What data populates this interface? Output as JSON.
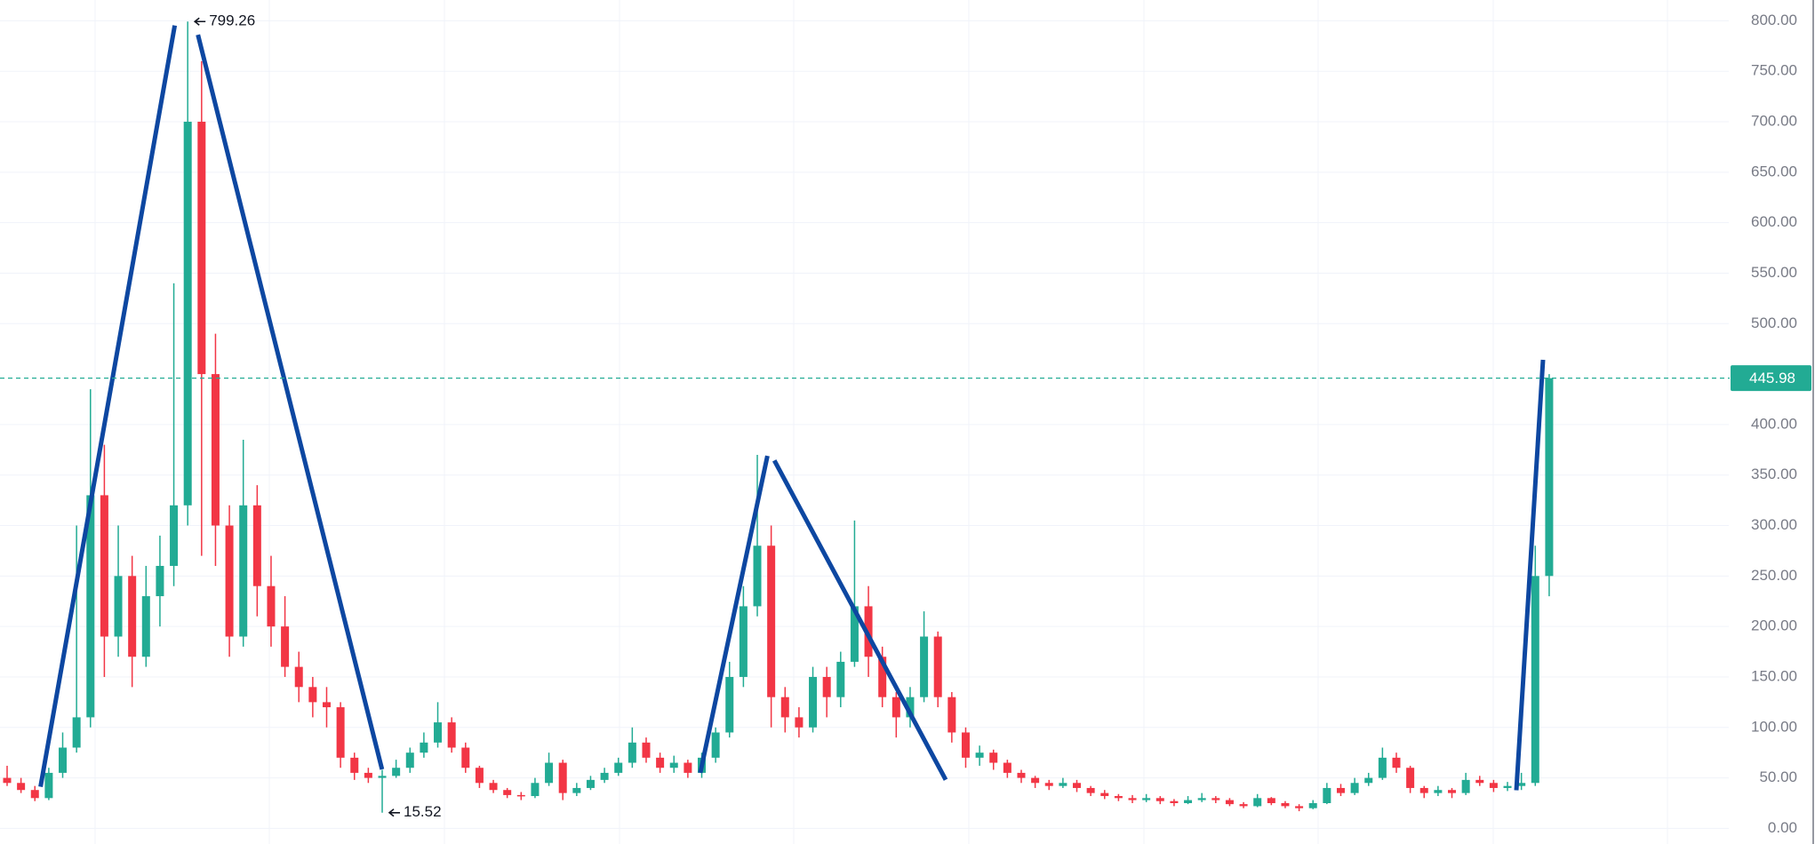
{
  "chart_data": {
    "type": "candlestick",
    "up_color": "#22ab94",
    "down_color": "#f23645",
    "grid": true,
    "ylim": [
      0,
      800
    ],
    "yticks": [
      {
        "value": 0,
        "label": "0.00"
      },
      {
        "value": 50,
        "label": "50.00"
      },
      {
        "value": 100,
        "label": "100.00"
      },
      {
        "value": 150,
        "label": "150.00"
      },
      {
        "value": 200,
        "label": "200.00"
      },
      {
        "value": 250,
        "label": "250.00"
      },
      {
        "value": 300,
        "label": "300.00"
      },
      {
        "value": 350,
        "label": "350.00"
      },
      {
        "value": 400,
        "label": "400.00"
      },
      {
        "value": 500,
        "label": "500.00"
      },
      {
        "value": 550,
        "label": "550.00"
      },
      {
        "value": 600,
        "label": "600.00"
      },
      {
        "value": 650,
        "label": "650.00"
      },
      {
        "value": 700,
        "label": "700.00"
      },
      {
        "value": 750,
        "label": "750.00"
      },
      {
        "value": 800,
        "label": "800.00"
      }
    ],
    "high_marker": 799.26,
    "low_marker": 15.52,
    "last_price": 445.98,
    "last_price_color": "#22ab94",
    "open": [
      50,
      45,
      38,
      30,
      55,
      80,
      110,
      330,
      190,
      250,
      170,
      230,
      260,
      320,
      700,
      450,
      300,
      190,
      320,
      240,
      200,
      160,
      140,
      125,
      120,
      70,
      55,
      50,
      52,
      60,
      75,
      85,
      105,
      80,
      60,
      45,
      38,
      33,
      32,
      45,
      65,
      35,
      40,
      48,
      55,
      65,
      85,
      70,
      60,
      65,
      55,
      70,
      95,
      150,
      220,
      280,
      130,
      110,
      100,
      150,
      130,
      165,
      220,
      170,
      130,
      110,
      130,
      190,
      130,
      95,
      70,
      75,
      65,
      55,
      50,
      45,
      42,
      45,
      40,
      35,
      32,
      30,
      28,
      30,
      27,
      25,
      28,
      30,
      28,
      24,
      22,
      30,
      25,
      22,
      20,
      25,
      40,
      35,
      45,
      50,
      70,
      60,
      40,
      35,
      38,
      35,
      48,
      45,
      40,
      42,
      45,
      250
    ],
    "high": [
      62,
      50,
      42,
      60,
      95,
      300,
      435,
      380,
      300,
      270,
      260,
      290,
      540,
      799.26,
      760,
      490,
      320,
      385,
      340,
      270,
      230,
      175,
      150,
      140,
      125,
      75,
      60,
      58,
      68,
      80,
      95,
      125,
      110,
      85,
      62,
      48,
      40,
      36,
      50,
      75,
      68,
      45,
      52,
      60,
      70,
      100,
      90,
      75,
      72,
      68,
      75,
      100,
      165,
      240,
      370,
      300,
      140,
      120,
      160,
      160,
      175,
      305,
      240,
      180,
      135,
      140,
      215,
      195,
      135,
      100,
      82,
      78,
      68,
      58,
      52,
      48,
      50,
      48,
      42,
      38,
      34,
      33,
      34,
      32,
      29,
      32,
      35,
      32,
      30,
      26,
      34,
      31,
      27,
      24,
      28,
      45,
      44,
      50,
      55,
      80,
      75,
      62,
      42,
      42,
      40,
      55,
      52,
      48,
      46,
      55,
      280,
      450
    ],
    "low": [
      42,
      35,
      27,
      28,
      50,
      75,
      100,
      150,
      170,
      140,
      160,
      200,
      240,
      300,
      270,
      260,
      170,
      180,
      210,
      180,
      150,
      125,
      110,
      100,
      60,
      48,
      45,
      15.52,
      50,
      55,
      70,
      80,
      75,
      55,
      40,
      35,
      30,
      28,
      30,
      42,
      28,
      32,
      38,
      45,
      52,
      60,
      65,
      55,
      55,
      50,
      50,
      65,
      90,
      140,
      210,
      100,
      95,
      90,
      95,
      110,
      120,
      160,
      150,
      120,
      90,
      100,
      125,
      120,
      85,
      60,
      62,
      58,
      50,
      45,
      40,
      38,
      40,
      36,
      32,
      29,
      27,
      25,
      26,
      24,
      22,
      24,
      26,
      25,
      22,
      20,
      21,
      23,
      20,
      17,
      19,
      24,
      32,
      33,
      42,
      48,
      55,
      35,
      30,
      32,
      30,
      33,
      42,
      36,
      37,
      38,
      42,
      230
    ],
    "close": [
      45,
      38,
      30,
      55,
      80,
      110,
      330,
      190,
      250,
      170,
      230,
      260,
      320,
      700,
      450,
      300,
      190,
      320,
      240,
      200,
      160,
      140,
      125,
      120,
      70,
      55,
      50,
      52,
      60,
      75,
      85,
      105,
      80,
      60,
      45,
      38,
      33,
      32,
      45,
      65,
      35,
      40,
      48,
      55,
      65,
      85,
      70,
      60,
      65,
      55,
      70,
      95,
      150,
      220,
      280,
      130,
      110,
      100,
      150,
      130,
      165,
      220,
      170,
      130,
      110,
      130,
      190,
      130,
      95,
      70,
      75,
      65,
      55,
      50,
      45,
      42,
      45,
      40,
      35,
      32,
      30,
      28,
      30,
      27,
      25,
      28,
      30,
      28,
      24,
      22,
      30,
      25,
      22,
      20,
      25,
      40,
      35,
      45,
      50,
      70,
      60,
      40,
      35,
      38,
      35,
      48,
      45,
      40,
      42,
      45,
      250,
      445.98
    ]
  }
}
